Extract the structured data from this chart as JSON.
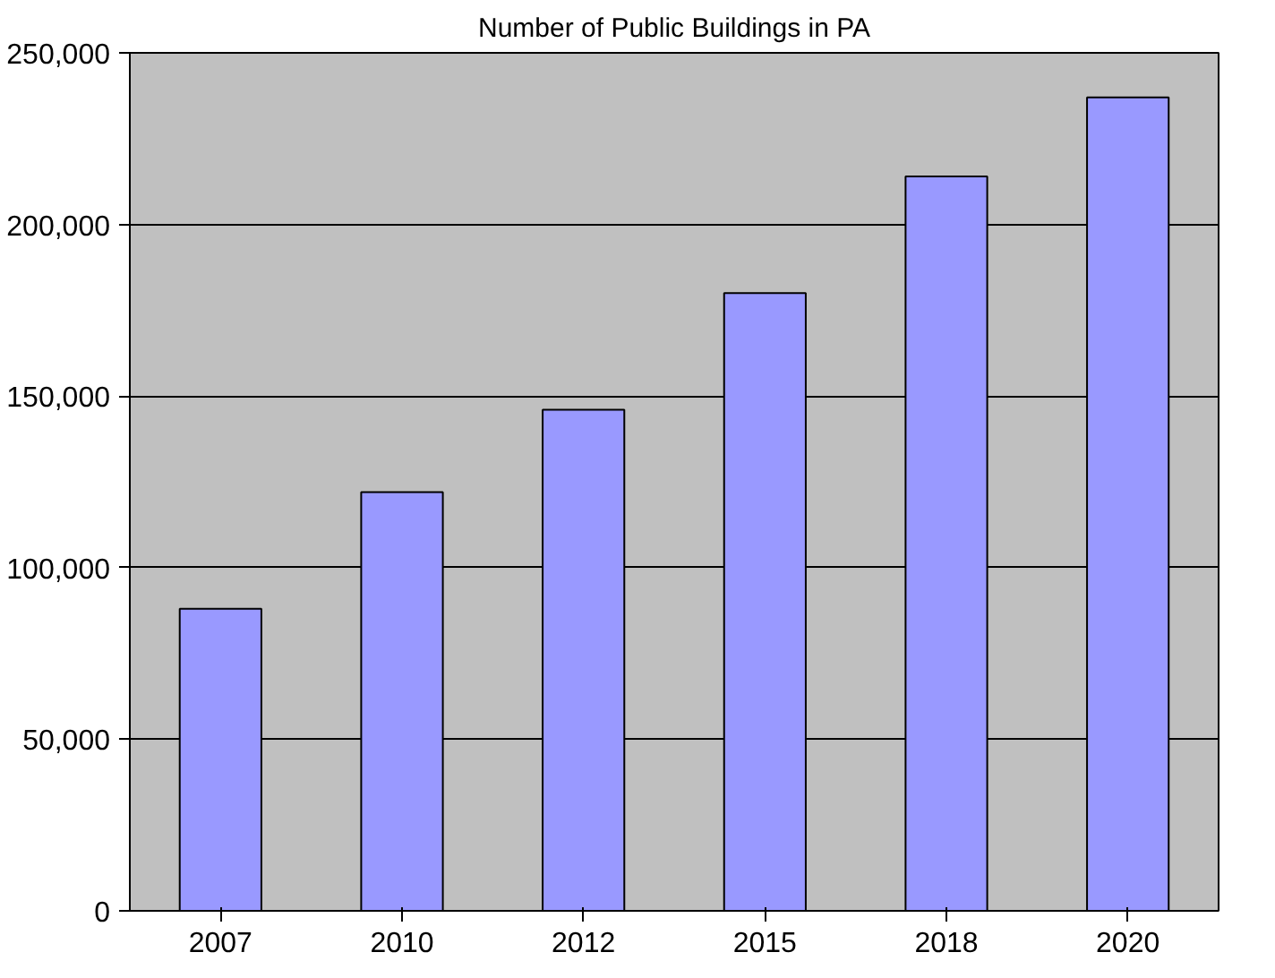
{
  "chart_data": {
    "type": "bar",
    "title": "Number of Public Buildings in PA",
    "categories": [
      "2007",
      "2010",
      "2012",
      "2015",
      "2018",
      "2020"
    ],
    "values": [
      88000,
      122000,
      146000,
      180000,
      214000,
      237000
    ],
    "color": "#9999ff",
    "ylim": [
      0,
      250000
    ],
    "yticks": [
      {
        "value": 0,
        "label": "0"
      },
      {
        "value": 50000,
        "label": "50,000"
      },
      {
        "value": 100000,
        "label": "100,000"
      },
      {
        "value": 150000,
        "label": "150,000"
      },
      {
        "value": 200000,
        "label": "200,000"
      },
      {
        "value": 250000,
        "label": "250,000"
      }
    ],
    "grid": "y"
  }
}
